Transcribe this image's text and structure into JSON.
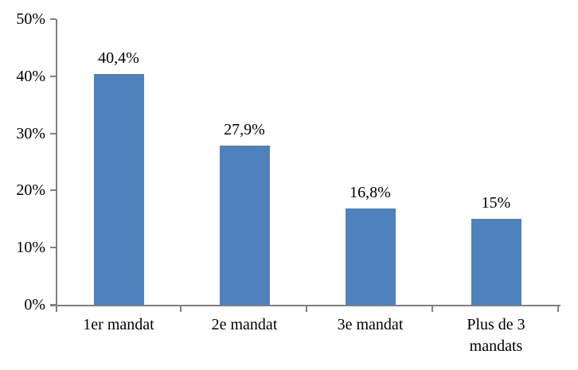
{
  "chart_data": {
    "type": "bar",
    "title": "",
    "xlabel": "",
    "ylabel": "",
    "categories": [
      "1er mandat",
      "2e mandat",
      "3e mandat",
      "Plus de 3\nmandats"
    ],
    "values": [
      40.4,
      27.9,
      16.8,
      15
    ],
    "value_labels": [
      "40,4%",
      "27,9%",
      "16,8%",
      "15%"
    ],
    "ylim": [
      0,
      50
    ],
    "ytick_interval": 10,
    "ytick_labels": [
      "0%",
      "10%",
      "20%",
      "30%",
      "40%",
      "50%"
    ],
    "grid": false,
    "legend": false,
    "colors": {
      "bar": "#4f81bd",
      "axis": "#808080",
      "text": "#000000",
      "background": "#ffffff"
    }
  }
}
